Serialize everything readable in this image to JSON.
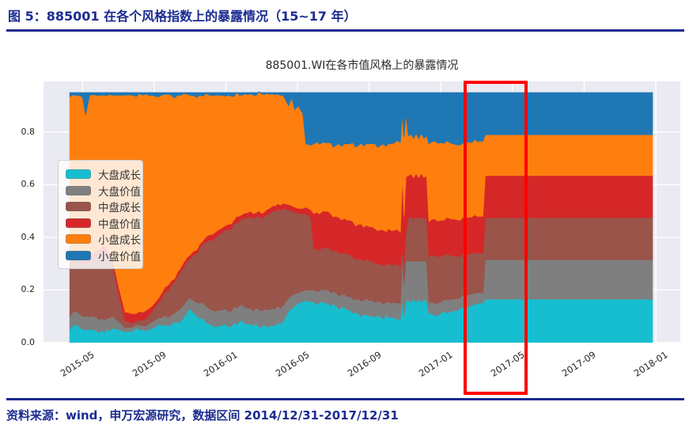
{
  "page": {
    "header_title": "图 5：885001 在各个风格指数上的暴露情况（15~17 年）",
    "source_note": "资料来源：wind，申万宏源研究，数据区间 2014/12/31-2017/12/31",
    "accent_color": "#1b2b90",
    "background_color": "#ffffff"
  },
  "chart_data": {
    "type": "area",
    "stacked": true,
    "title": "885001.WI在各市值风格上的暴露情况",
    "plot_background": "#EAEAF2",
    "grid": "white major gridlines on light grey background (seaborn darkgrid), no spines",
    "legend_position": "upper left inside plot",
    "x_axis": {
      "tick_labels": [
        "2015-05",
        "2015-09",
        "2016-01",
        "2016-05",
        "2016-09",
        "2017-01",
        "2017-05",
        "2017-09",
        "2018-01"
      ],
      "tick_values": [
        2015.3333,
        2015.6667,
        2016.0,
        2016.3333,
        2016.6667,
        2017.0,
        2017.3333,
        2017.6667,
        2018.0
      ],
      "range": [
        2015.152,
        2018.114
      ],
      "label_rotation_deg": -33
    },
    "y_axis": {
      "tick_labels": [
        "0.0",
        "0.2",
        "0.4",
        "0.6",
        "0.8"
      ],
      "tick_values": [
        0.0,
        0.2,
        0.4,
        0.6,
        0.8
      ],
      "range": [
        0.0,
        0.992
      ]
    },
    "total_stack_height": 0.95,
    "x": [
      2015.274,
      2015.304,
      2015.333,
      2015.348,
      2015.366,
      2015.399,
      2015.436,
      2015.473,
      2015.503,
      2015.532,
      2015.569,
      2015.613,
      2015.658,
      2015.702,
      2015.746,
      2015.79,
      2015.835,
      2015.879,
      2015.923,
      2015.967,
      2016.012,
      2016.063,
      2016.115,
      2016.167,
      2016.218,
      2016.266,
      2016.292,
      2016.307,
      2016.321,
      2016.336,
      2016.358,
      2016.373,
      2016.395,
      2016.41,
      2016.462,
      2016.513,
      2016.565,
      2016.617,
      2016.668,
      2016.72,
      2016.771,
      2016.812,
      2016.821,
      2016.829,
      2016.838,
      2016.849,
      2016.934,
      2016.945,
      2017.0,
      2017.059,
      2017.118,
      2017.17,
      2017.196,
      2017.207,
      2017.531,
      2017.985
    ],
    "series": [
      {
        "name": "大盘成长",
        "color": "#17becf",
        "values": [
          0.05,
          0.07,
          0.05,
          0.05,
          0.05,
          0.045,
          0.04,
          0.055,
          0.05,
          0.04,
          0.045,
          0.05,
          0.055,
          0.065,
          0.07,
          0.08,
          0.13,
          0.09,
          0.07,
          0.065,
          0.06,
          0.08,
          0.07,
          0.06,
          0.065,
          0.08,
          0.12,
          0.13,
          0.14,
          0.15,
          0.155,
          0.16,
          0.155,
          0.155,
          0.15,
          0.14,
          0.125,
          0.11,
          0.1,
          0.1,
          0.095,
          0.09,
          0.16,
          0.1,
          0.16,
          0.16,
          0.16,
          0.11,
          0.11,
          0.12,
          0.135,
          0.15,
          0.15,
          0.165,
          0.165,
          0.165
        ]
      },
      {
        "name": "大盘价值",
        "color": "#7f7f7f",
        "values": [
          0.05,
          0.05,
          0.05,
          0.05,
          0.05,
          0.05,
          0.045,
          0.045,
          0.03,
          0.015,
          0.015,
          0.015,
          0.025,
          0.03,
          0.035,
          0.05,
          0.04,
          0.06,
          0.06,
          0.06,
          0.06,
          0.06,
          0.06,
          0.06,
          0.065,
          0.06,
          0.05,
          0.05,
          0.045,
          0.04,
          0.04,
          0.04,
          0.045,
          0.045,
          0.05,
          0.05,
          0.05,
          0.055,
          0.06,
          0.055,
          0.055,
          0.06,
          0.15,
          0.12,
          0.15,
          0.15,
          0.15,
          0.04,
          0.045,
          0.045,
          0.045,
          0.04,
          0.04,
          0.15,
          0.15,
          0.15
        ]
      },
      {
        "name": "中盘成长",
        "color": "#9a5449",
        "values": [
          0.19,
          0.19,
          0.2,
          0.2,
          0.21,
          0.235,
          0.265,
          0.2,
          0.1,
          0.025,
          0.015,
          0.02,
          0.04,
          0.075,
          0.115,
          0.14,
          0.15,
          0.21,
          0.26,
          0.285,
          0.31,
          0.32,
          0.35,
          0.35,
          0.37,
          0.37,
          0.335,
          0.32,
          0.31,
          0.3,
          0.295,
          0.29,
          0.275,
          0.155,
          0.16,
          0.16,
          0.16,
          0.155,
          0.15,
          0.145,
          0.145,
          0.14,
          0.04,
          0.08,
          0.11,
          0.165,
          0.165,
          0.175,
          0.175,
          0.165,
          0.155,
          0.15,
          0.15,
          0.16,
          0.16,
          0.16
        ]
      },
      {
        "name": "中盘价值",
        "color": "#d62728",
        "values": [
          0.02,
          0.02,
          0.02,
          0.02,
          0.02,
          0.02,
          0.02,
          0.02,
          0.03,
          0.035,
          0.035,
          0.03,
          0.02,
          0.02,
          0.015,
          0.015,
          0.015,
          0.015,
          0.02,
          0.02,
          0.02,
          0.02,
          0.02,
          0.02,
          0.02,
          0.02,
          0.02,
          0.02,
          0.02,
          0.02,
          0.02,
          0.025,
          0.03,
          0.135,
          0.14,
          0.13,
          0.13,
          0.13,
          0.13,
          0.13,
          0.13,
          0.13,
          0.28,
          0.18,
          0.21,
          0.16,
          0.16,
          0.135,
          0.135,
          0.14,
          0.14,
          0.14,
          0.14,
          0.16,
          0.16,
          0.16
        ]
      },
      {
        "name": "小盘成长",
        "color": "#ff7f0e",
        "values": [
          0.625,
          0.61,
          0.615,
          0.545,
          0.61,
          0.59,
          0.57,
          0.62,
          0.73,
          0.825,
          0.83,
          0.825,
          0.8,
          0.75,
          0.705,
          0.655,
          0.605,
          0.565,
          0.53,
          0.51,
          0.49,
          0.46,
          0.445,
          0.455,
          0.425,
          0.41,
          0.375,
          0.41,
          0.37,
          0.39,
          0.36,
          0.24,
          0.245,
          0.265,
          0.26,
          0.27,
          0.29,
          0.3,
          0.315,
          0.32,
          0.33,
          0.34,
          0.24,
          0.3,
          0.24,
          0.15,
          0.15,
          0.295,
          0.295,
          0.285,
          0.285,
          0.285,
          0.285,
          0.155,
          0.155,
          0.155
        ]
      },
      {
        "name": "小盘价值",
        "color": "#1f77b4",
        "values": [
          0.015,
          0.01,
          0.015,
          0.085,
          0.01,
          0.01,
          0.01,
          0.01,
          0.01,
          0.01,
          0.01,
          0.01,
          0.01,
          0.01,
          0.01,
          0.01,
          0.01,
          0.01,
          0.01,
          0.01,
          0.01,
          0.01,
          0.005,
          0.005,
          0.005,
          0.01,
          0.05,
          0.02,
          0.065,
          0.05,
          0.08,
          0.195,
          0.2,
          0.195,
          0.19,
          0.2,
          0.195,
          0.2,
          0.195,
          0.2,
          0.195,
          0.19,
          0.08,
          0.17,
          0.08,
          0.165,
          0.165,
          0.195,
          0.19,
          0.195,
          0.19,
          0.185,
          0.185,
          0.16,
          0.16,
          0.16
        ]
      }
    ],
    "annotation": {
      "highlight_box": {
        "shape": "rectangle",
        "color": "#ff0000",
        "around_x_tick": "2017-05",
        "x_range": [
          2017.12,
          2017.36
        ],
        "covers_full_height": true
      }
    }
  }
}
